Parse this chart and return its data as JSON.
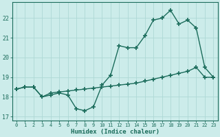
{
  "line1_x": [
    0,
    1,
    2,
    3,
    4,
    5,
    6,
    7,
    8,
    9,
    10,
    11,
    12,
    13,
    14,
    15,
    16,
    17,
    18,
    19,
    20,
    21,
    22,
    23
  ],
  "line1_y": [
    18.4,
    18.5,
    18.5,
    18.0,
    18.1,
    18.2,
    18.1,
    17.4,
    17.3,
    17.5,
    18.6,
    19.1,
    20.6,
    20.5,
    20.5,
    21.1,
    21.9,
    22.0,
    22.4,
    21.7,
    21.9,
    21.5,
    19.5,
    19.0
  ],
  "line2_x": [
    0,
    1,
    2,
    3,
    4,
    5,
    6,
    7,
    8,
    9,
    10,
    11,
    12,
    13,
    14,
    15,
    16,
    17,
    18,
    19,
    20,
    21,
    22,
    23
  ],
  "line2_y": [
    18.4,
    18.5,
    18.5,
    18.0,
    18.2,
    18.25,
    18.3,
    18.35,
    18.4,
    18.45,
    18.5,
    18.55,
    18.6,
    18.65,
    18.7,
    18.8,
    18.9,
    19.0,
    19.1,
    19.2,
    19.3,
    19.5,
    19.0,
    19.0
  ],
  "line_color": "#1a6b5a",
  "bg_color": "#ccecea",
  "grid_color": "#aed8d5",
  "axis_color": "#1a6b5a",
  "xlabel": "Humidex (Indice chaleur)",
  "xlim": [
    -0.5,
    23.5
  ],
  "ylim": [
    16.8,
    22.8
  ],
  "yticks": [
    17,
    18,
    19,
    20,
    21,
    22
  ],
  "xticks": [
    0,
    1,
    2,
    3,
    4,
    5,
    6,
    7,
    8,
    9,
    10,
    11,
    12,
    13,
    14,
    15,
    16,
    17,
    18,
    19,
    20,
    21,
    22,
    23
  ],
  "marker": "+",
  "markersize": 4,
  "markeredgewidth": 1.2,
  "linewidth": 1.0,
  "xlabel_fontsize": 6.5,
  "xtick_fontsize": 5.0,
  "ytick_fontsize": 6.0
}
